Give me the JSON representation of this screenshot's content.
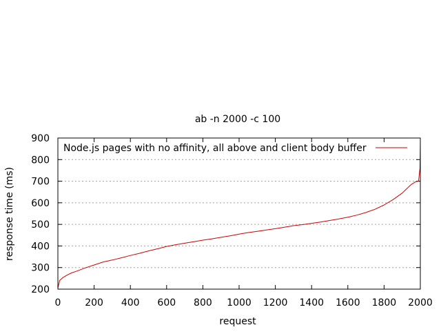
{
  "chart_data": {
    "type": "line",
    "title": "ab -n 2000 -c 100",
    "xlabel": "request",
    "ylabel": "response time (ms)",
    "xlim": [
      0,
      2000
    ],
    "ylim": [
      200,
      900
    ],
    "xticks": [
      0,
      200,
      400,
      600,
      800,
      1000,
      1200,
      1400,
      1600,
      1800,
      2000
    ],
    "yticks": [
      200,
      300,
      400,
      500,
      600,
      700,
      800,
      900
    ],
    "grid": "horizontal dotted",
    "legend_position": "top-left",
    "series": [
      {
        "name": "Node.js pages with no affinity, all above and client body buffer",
        "color": "#cc0000",
        "x": [
          0,
          10,
          25,
          50,
          75,
          100,
          150,
          200,
          250,
          300,
          350,
          400,
          450,
          500,
          550,
          600,
          650,
          700,
          750,
          800,
          850,
          900,
          950,
          1000,
          1050,
          1100,
          1150,
          1200,
          1250,
          1300,
          1350,
          1400,
          1450,
          1500,
          1550,
          1600,
          1650,
          1700,
          1750,
          1800,
          1850,
          1900,
          1925,
          1950,
          1975,
          1990,
          1998,
          2000
        ],
        "y": [
          205,
          240,
          252,
          265,
          275,
          282,
          298,
          312,
          326,
          335,
          345,
          356,
          366,
          377,
          387,
          398,
          406,
          413,
          420,
          427,
          433,
          440,
          447,
          455,
          462,
          468,
          474,
          480,
          487,
          494,
          499,
          505,
          511,
          518,
          525,
          533,
          543,
          555,
          570,
          590,
          615,
          645,
          665,
          685,
          698,
          700,
          760,
          880
        ]
      }
    ]
  }
}
